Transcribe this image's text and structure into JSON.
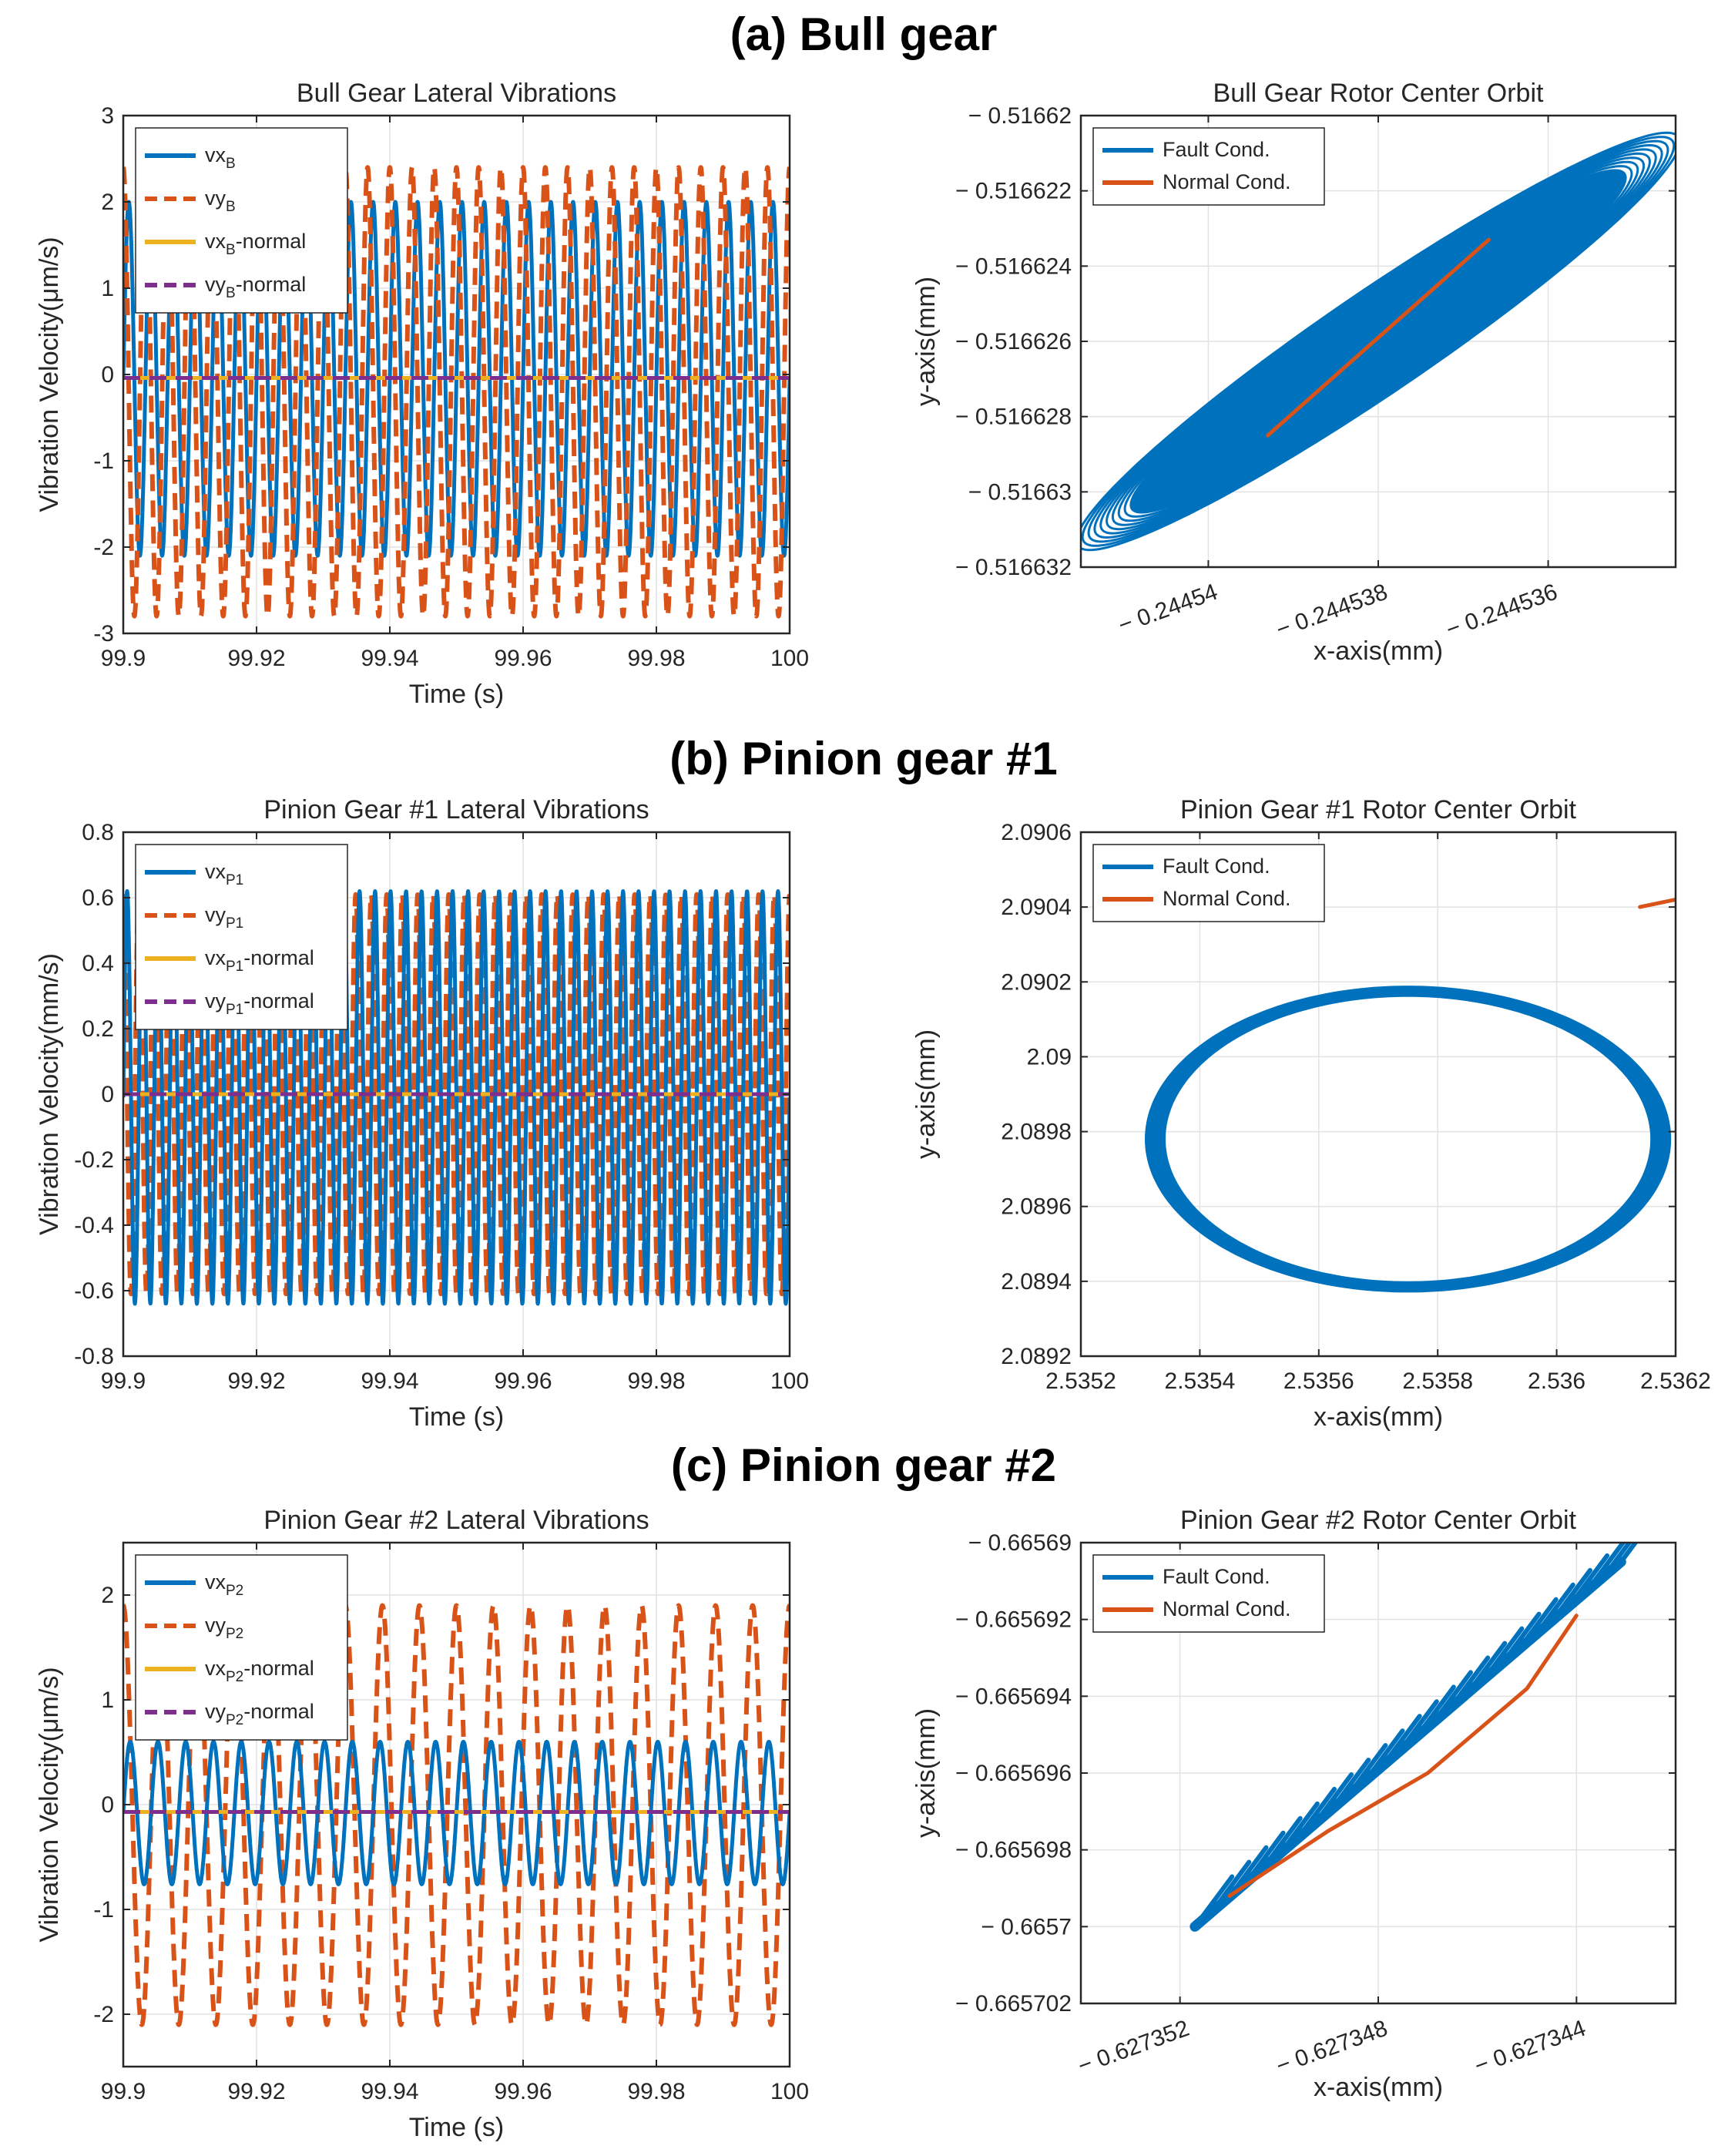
{
  "sections": [
    {
      "title": "(a) Bull gear"
    },
    {
      "title": "(b) Pinion gear #1"
    },
    {
      "title": "(c) Pinion gear #2"
    }
  ],
  "colors": {
    "blue": "#0072BD",
    "orange": "#D95319",
    "yellow": "#EDB120",
    "purple": "#7E2F8E"
  },
  "chart_data": [
    {
      "id": "bull-vib",
      "type": "line",
      "title": "Bull Gear Lateral Vibrations",
      "xlabel": "Time (s)",
      "ylabel": "Vibration Velocity(μm/s)",
      "xlim": [
        99.9,
        100
      ],
      "ylim": [
        -3,
        3
      ],
      "xticks": [
        99.9,
        99.92,
        99.94,
        99.96,
        99.98,
        100
      ],
      "xtick_labels": [
        "99.9",
        "99.92",
        "99.94",
        "99.96",
        "99.98",
        "100"
      ],
      "yticks": [
        -3,
        -2,
        -1,
        0,
        1,
        2,
        3
      ],
      "ytick_labels": [
        "-3",
        "-2",
        "-1",
        "0",
        "1",
        "2",
        "3"
      ],
      "grid": true,
      "legend_position": "top-left",
      "legend": [
        {
          "base": "vx",
          "sub": "B",
          "suffix": "",
          "style": "solid",
          "color": "#0072BD"
        },
        {
          "base": "vy",
          "sub": "B",
          "suffix": "",
          "style": "dashed",
          "color": "#D95319"
        },
        {
          "base": "vx",
          "sub": "B",
          "suffix": "-normal",
          "style": "solid",
          "color": "#EDB120"
        },
        {
          "base": "vy",
          "sub": "B",
          "suffix": "-normal",
          "style": "dashed",
          "color": "#7E2F8E"
        }
      ],
      "series": [
        {
          "name": "vx_B",
          "kind": "sine",
          "amp": 2.05,
          "offset": -0.05,
          "cycles": 30,
          "phase": 0.0,
          "style": "solid",
          "color": "#0072BD",
          "width": 5
        },
        {
          "name": "vy_B",
          "kind": "sine",
          "amp": 2.6,
          "offset": -0.2,
          "cycles": 30,
          "phase": 1.57,
          "style": "dashed",
          "color": "#D95319",
          "width": 6
        },
        {
          "name": "vx_B-normal",
          "kind": "const",
          "value": -0.04,
          "style": "solid",
          "color": "#EDB120",
          "width": 5
        },
        {
          "name": "vy_B-normal",
          "kind": "const",
          "value": -0.04,
          "style": "dashed",
          "color": "#7E2F8E",
          "width": 5
        }
      ]
    },
    {
      "id": "bull-orbit",
      "type": "line",
      "title": "Bull Gear Rotor Center Orbit",
      "xlabel": "x-axis(mm)",
      "ylabel": "y-axis(mm)",
      "xlim": [
        -0.2445415,
        -0.2445345
      ],
      "ylim": [
        -0.516632,
        -0.51662
      ],
      "xticks": [
        -0.24454,
        -0.244538,
        -0.244536
      ],
      "xtick_labels": [
        "− 0.24454",
        "− 0.244538",
        "− 0.244536"
      ],
      "xtick_rotation": -20,
      "yticks": [
        -0.516632,
        -0.51663,
        -0.516628,
        -0.516626,
        -0.516624,
        -0.516622,
        -0.51662
      ],
      "ytick_labels": [
        "− 0.516632",
        "− 0.51663",
        "− 0.516628",
        "− 0.516626",
        "− 0.516624",
        "− 0.516622",
        "− 0.51662"
      ],
      "grid": true,
      "legend_position": "top-left",
      "legend": [
        {
          "base": "Fault Cond.",
          "sub": "",
          "suffix": "",
          "style": "solid",
          "color": "#0072BD"
        },
        {
          "base": "Normal Cond.",
          "sub": "",
          "suffix": "",
          "style": "solid",
          "color": "#D95319"
        }
      ],
      "series": [
        {
          "name": "Fault Cond.",
          "kind": "ellipse-band",
          "cx": -0.244538,
          "cy": -0.516626,
          "ax": 3.5e-06,
          "ay": 5.5e-06,
          "bx": 6e-07,
          "by": -7e-07,
          "loops": 10,
          "shrink": 0.82,
          "color": "#0072BD",
          "width": 3,
          "fill": true
        },
        {
          "name": "Normal Cond.",
          "kind": "polyline",
          "x": [
            -0.2445393,
            -0.244538,
            -0.2445367
          ],
          "y": [
            -0.5166285,
            -0.5166259,
            -0.5166233
          ],
          "color": "#D95319",
          "width": 5
        }
      ]
    },
    {
      "id": "p1-vib",
      "type": "line",
      "title": "Pinion Gear #1 Lateral Vibrations",
      "xlabel": "Time (s)",
      "ylabel": "Vibration Velocity(mm/s)",
      "xlim": [
        99.9,
        100
      ],
      "ylim": [
        -0.8,
        0.8
      ],
      "xticks": [
        99.9,
        99.92,
        99.94,
        99.96,
        99.98,
        100
      ],
      "xtick_labels": [
        "99.9",
        "99.92",
        "99.94",
        "99.96",
        "99.98",
        "100"
      ],
      "yticks": [
        -0.8,
        -0.6,
        -0.4,
        -0.2,
        0,
        0.2,
        0.4,
        0.6,
        0.8
      ],
      "ytick_labels": [
        "-0.8",
        "-0.6",
        "-0.4",
        "-0.2",
        "0",
        "0.2",
        "0.4",
        "0.6",
        "0.8"
      ],
      "grid": true,
      "legend_position": "top-left",
      "legend": [
        {
          "base": "vx",
          "sub": "P1",
          "suffix": "",
          "style": "solid",
          "color": "#0072BD"
        },
        {
          "base": "vy",
          "sub": "P1",
          "suffix": "",
          "style": "dashed",
          "color": "#D95319"
        },
        {
          "base": "vx",
          "sub": "P1",
          "suffix": "-normal",
          "style": "solid",
          "color": "#EDB120"
        },
        {
          "base": "vy",
          "sub": "P1",
          "suffix": "-normal",
          "style": "dashed",
          "color": "#7E2F8E"
        }
      ],
      "series": [
        {
          "name": "vy_P1",
          "kind": "sine",
          "amp": 0.61,
          "offset": 0.0,
          "cycles": 43,
          "phase": 1.57,
          "style": "dashed",
          "color": "#D95319",
          "width": 6
        },
        {
          "name": "vx_P1",
          "kind": "sine",
          "amp": 0.63,
          "offset": -0.01,
          "cycles": 43,
          "phase": 0.0,
          "style": "solid",
          "color": "#0072BD",
          "width": 5
        },
        {
          "name": "vx_P1-normal",
          "kind": "const",
          "value": 0.0,
          "style": "solid",
          "color": "#EDB120",
          "width": 5
        },
        {
          "name": "vy_P1-normal",
          "kind": "const",
          "value": 0.0,
          "style": "dashed",
          "color": "#7E2F8E",
          "width": 5
        }
      ]
    },
    {
      "id": "p1-orbit",
      "type": "line",
      "title": "Pinion Gear #1 Rotor Center Orbit",
      "xlabel": "x-axis(mm)",
      "ylabel": "y-axis(mm)",
      "xlim": [
        2.5352,
        2.5362
      ],
      "ylim": [
        2.0892,
        2.0906
      ],
      "xticks": [
        2.5352,
        2.5354,
        2.5356,
        2.5358,
        2.536,
        2.5362
      ],
      "xtick_labels": [
        "2.5352",
        "2.5354",
        "2.5356",
        "2.5358",
        "2.536",
        "2.5362"
      ],
      "yticks": [
        2.0892,
        2.0894,
        2.0896,
        2.0898,
        2.09,
        2.0902,
        2.0904,
        2.0906
      ],
      "ytick_labels": [
        "2.0892",
        "2.0894",
        "2.0896",
        "2.0898",
        "2.09",
        "2.0902",
        "2.0904",
        "2.0906"
      ],
      "grid": true,
      "legend_position": "top-left",
      "legend": [
        {
          "base": "Fault Cond.",
          "sub": "",
          "suffix": "",
          "style": "solid",
          "color": "#0072BD"
        },
        {
          "base": "Normal Cond.",
          "sub": "",
          "suffix": "",
          "style": "solid",
          "color": "#D95319"
        }
      ],
      "series": [
        {
          "name": "Fault Cond.",
          "kind": "ring",
          "cx": 2.53575,
          "cy": 2.08978,
          "rx": 0.000425,
          "ry": 0.000395,
          "thickness_x": 3.5e-05,
          "thickness_y": 3e-05,
          "color": "#0072BD"
        },
        {
          "name": "Normal Cond.",
          "kind": "polyline",
          "x": [
            2.53614,
            2.5362
          ],
          "y": [
            2.0904,
            2.09042
          ],
          "color": "#D95319",
          "width": 5
        }
      ]
    },
    {
      "id": "p2-vib",
      "type": "line",
      "title": "Pinion Gear #2 Lateral Vibrations",
      "xlabel": "Time (s)",
      "ylabel": "Vibration Velocity(μm/s)",
      "xlim": [
        99.9,
        100
      ],
      "ylim": [
        -2.5,
        2.5
      ],
      "xticks": [
        99.9,
        99.92,
        99.94,
        99.96,
        99.98,
        100
      ],
      "xtick_labels": [
        "99.9",
        "99.92",
        "99.94",
        "99.96",
        "99.98",
        "100"
      ],
      "yticks": [
        -2,
        -1,
        0,
        1,
        2
      ],
      "ytick_labels": [
        "-2",
        "-1",
        "0",
        "1",
        "2"
      ],
      "grid": true,
      "legend_position": "top-left",
      "legend": [
        {
          "base": "vx",
          "sub": "P2",
          "suffix": "",
          "style": "solid",
          "color": "#0072BD"
        },
        {
          "base": "vy",
          "sub": "P2",
          "suffix": "",
          "style": "dashed",
          "color": "#D95319"
        },
        {
          "base": "vx",
          "sub": "P2",
          "suffix": "-normal",
          "style": "solid",
          "color": "#EDB120"
        },
        {
          "base": "vy",
          "sub": "P2",
          "suffix": "-normal",
          "style": "dashed",
          "color": "#7E2F8E"
        }
      ],
      "series": [
        {
          "name": "vy_P2",
          "kind": "sine",
          "amp": 2.0,
          "offset": -0.1,
          "cycles": 18,
          "phase": 1.57,
          "style": "dashed",
          "color": "#D95319",
          "width": 6
        },
        {
          "name": "vx_P2",
          "kind": "sine",
          "amp": 0.68,
          "offset": -0.08,
          "cycles": 24,
          "phase": 0.0,
          "style": "solid",
          "color": "#0072BD",
          "width": 5
        },
        {
          "name": "vx_P2-normal",
          "kind": "const",
          "value": -0.07,
          "style": "solid",
          "color": "#EDB120",
          "width": 5
        },
        {
          "name": "vy_P2-normal",
          "kind": "const",
          "value": -0.07,
          "style": "dashed",
          "color": "#7E2F8E",
          "width": 5
        }
      ]
    },
    {
      "id": "p2-orbit",
      "type": "line",
      "title": "Pinion Gear #2 Rotor Center Orbit",
      "xlabel": "x-axis(mm)",
      "ylabel": "y-axis(mm)",
      "xlim": [
        -0.627354,
        -0.627342
      ],
      "ylim": [
        -0.665702,
        -0.66569
      ],
      "xticks": [
        -0.627352,
        -0.627348,
        -0.627344
      ],
      "xtick_labels": [
        "− 0.627352",
        "− 0.627348",
        "− 0.627344"
      ],
      "xtick_rotation": -20,
      "yticks": [
        -0.665702,
        -0.6657,
        -0.665698,
        -0.665696,
        -0.665694,
        -0.665692,
        -0.66569
      ],
      "ytick_labels": [
        "− 0.665702",
        "− 0.6657",
        "− 0.665698",
        "− 0.665696",
        "− 0.665694",
        "− 0.665692",
        "− 0.66569"
      ],
      "grid": true,
      "legend_position": "top-left",
      "legend": [
        {
          "base": "Fault Cond.",
          "sub": "",
          "suffix": "",
          "style": "solid",
          "color": "#0072BD"
        },
        {
          "base": "Normal Cond.",
          "sub": "",
          "suffix": "",
          "style": "solid",
          "color": "#D95319"
        }
      ],
      "series": [
        {
          "name": "Fault Cond.",
          "kind": "sawtooth-band",
          "x0": -0.6273517,
          "y0": -0.6657,
          "x1": -0.6273431,
          "y1": -0.6656905,
          "teeth": 26,
          "dx": 7.5e-07,
          "dy": 1.3e-06,
          "color": "#0072BD",
          "width": 6
        },
        {
          "name": "Normal Cond.",
          "kind": "polyline",
          "x": [
            -0.627351,
            -0.627349,
            -0.627347,
            -0.627345,
            -0.627344
          ],
          "y": [
            -0.6656992,
            -0.6656975,
            -0.665696,
            -0.6656938,
            -0.6656919
          ],
          "color": "#D95319",
          "width": 5
        }
      ]
    }
  ]
}
